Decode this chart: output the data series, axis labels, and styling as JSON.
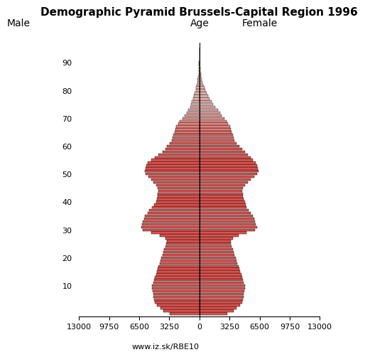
{
  "title": "Demographic Pyramid Brussels-Capital Region 1996",
  "xlabel_left": "Male",
  "xlabel_right": "Female",
  "age_label": "Age",
  "source": "www.iz.sk/RBE10",
  "xlim": 13000,
  "bar_color_young": "#d9534f",
  "bar_color_old": "#e8b4b0",
  "bar_edge_color": "#000000",
  "male": [
    3200,
    3900,
    4200,
    4600,
    4800,
    4900,
    4950,
    5000,
    5050,
    5100,
    5100,
    5000,
    4900,
    4800,
    4700,
    4600,
    4500,
    4400,
    4300,
    4200,
    4100,
    4000,
    3900,
    3800,
    3700,
    3600,
    3500,
    3700,
    4300,
    5200,
    6100,
    6300,
    6200,
    6100,
    6000,
    5900,
    5600,
    5400,
    5100,
    4900,
    4700,
    4600,
    4500,
    4500,
    4400,
    4500,
    4700,
    5000,
    5200,
    5500,
    5800,
    5900,
    5800,
    5700,
    5600,
    5200,
    4800,
    4400,
    4000,
    3700,
    3500,
    3200,
    3000,
    2900,
    2800,
    2700,
    2600,
    2500,
    2300,
    2100,
    1800,
    1600,
    1400,
    1200,
    1000,
    900,
    800,
    700,
    600,
    500,
    400,
    350,
    300,
    250,
    200,
    150,
    100,
    80,
    60,
    40,
    30,
    20,
    15,
    10,
    5,
    3
  ],
  "female": [
    3000,
    3700,
    4000,
    4400,
    4600,
    4700,
    4750,
    4800,
    4850,
    4900,
    4900,
    4800,
    4700,
    4600,
    4500,
    4400,
    4300,
    4200,
    4100,
    4000,
    3900,
    3800,
    3700,
    3600,
    3500,
    3400,
    3400,
    3600,
    4200,
    5100,
    6000,
    6200,
    6100,
    6000,
    5900,
    5800,
    5500,
    5300,
    5100,
    5000,
    4900,
    4800,
    4700,
    4700,
    4600,
    4700,
    4900,
    5200,
    5500,
    5900,
    6200,
    6400,
    6300,
    6200,
    6100,
    5800,
    5500,
    5200,
    4900,
    4600,
    4300,
    4000,
    3800,
    3700,
    3600,
    3500,
    3400,
    3300,
    3100,
    2900,
    2700,
    2400,
    2200,
    2000,
    1700,
    1500,
    1300,
    1100,
    900,
    750,
    600,
    520,
    430,
    350,
    280,
    200,
    140,
    100,
    70,
    50,
    35,
    25,
    18,
    12,
    6,
    3
  ]
}
